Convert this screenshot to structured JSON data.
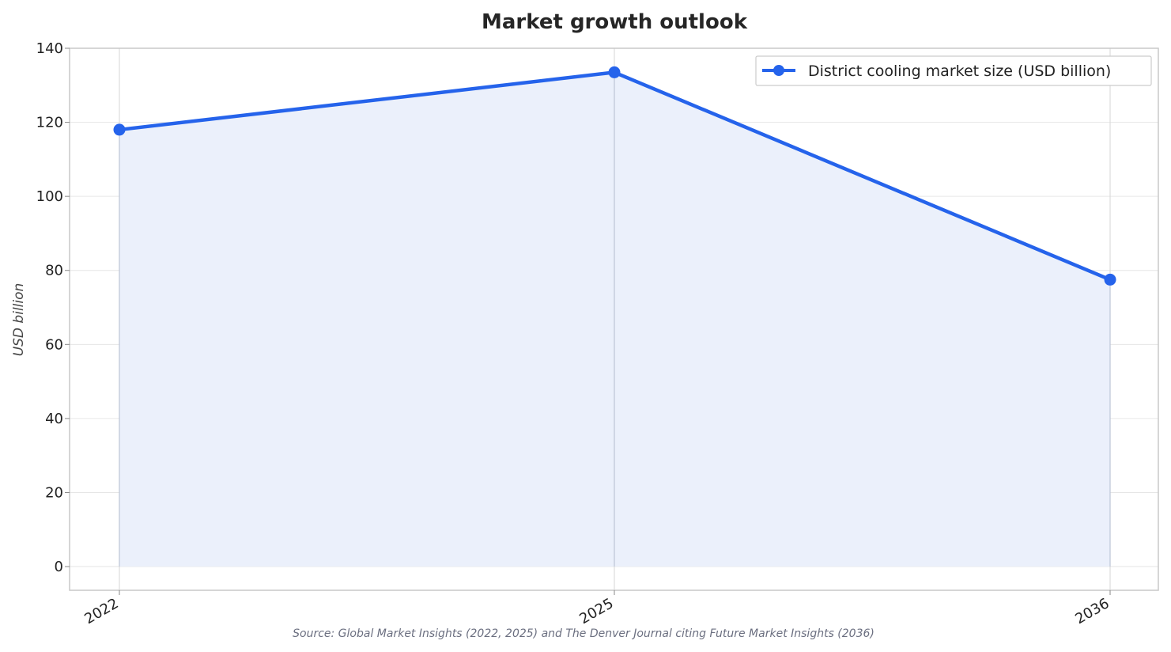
{
  "chart_data": {
    "type": "line",
    "title": "Market growth outlook",
    "xlabel": "",
    "ylabel": "USD billion",
    "x": [
      "2022",
      "2025",
      "2036"
    ],
    "series": [
      {
        "name": "District cooling market size (USD billion)",
        "values": [
          118,
          133.5,
          77.5
        ],
        "color": "#2563eb",
        "fill": "#ebf0fb"
      }
    ],
    "ylim": [
      -6.4,
      140
    ],
    "yticks": [
      0,
      20,
      40,
      60,
      80,
      100,
      120,
      140
    ],
    "grid": true,
    "legend_position": "top-right",
    "source": "Source: Global Market Insights (2022, 2025) and The Denver Journal citing Future Market Insights (2036)"
  }
}
